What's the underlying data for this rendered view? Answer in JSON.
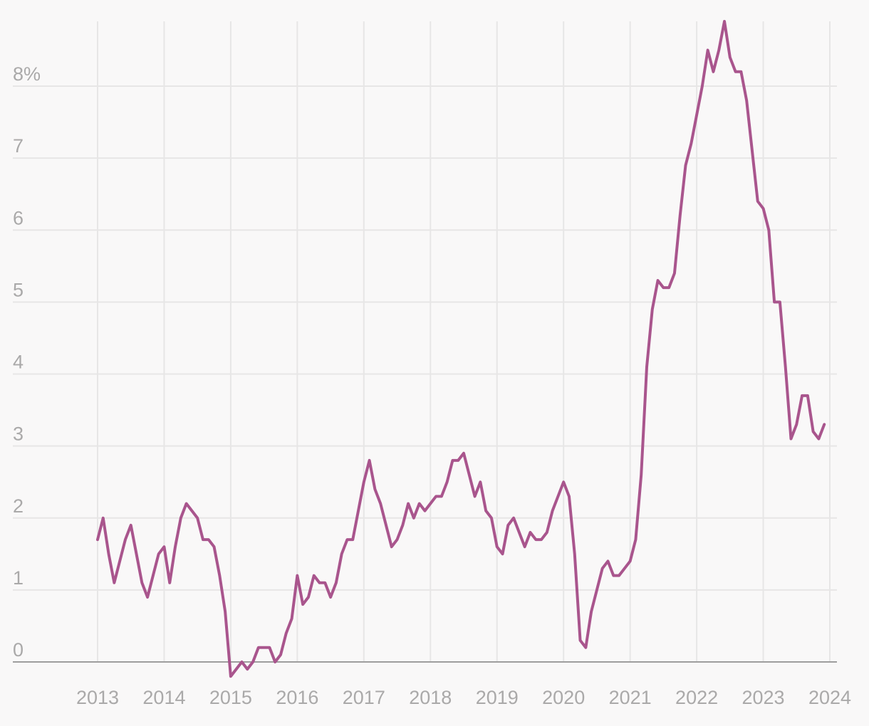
{
  "chart_data": {
    "type": "line",
    "title": "",
    "xlabel": "",
    "ylabel": "",
    "xlim": [
      2012.0,
      2024.1
    ],
    "ylim": [
      -0.2,
      8.9
    ],
    "grid": true,
    "legend": "none",
    "color": "#a9558d",
    "x_ticks": [
      {
        "value": 2013,
        "label": "2013"
      },
      {
        "value": 2014,
        "label": "2014"
      },
      {
        "value": 2015,
        "label": "2015"
      },
      {
        "value": 2016,
        "label": "2016"
      },
      {
        "value": 2017,
        "label": "2017"
      },
      {
        "value": 2018,
        "label": "2018"
      },
      {
        "value": 2019,
        "label": "2019"
      },
      {
        "value": 2020,
        "label": "2020"
      },
      {
        "value": 2021,
        "label": "2021"
      },
      {
        "value": 2022,
        "label": "2022"
      },
      {
        "value": 2023,
        "label": "2023"
      },
      {
        "value": 2024,
        "label": "2024"
      }
    ],
    "y_ticks": [
      {
        "value": 0,
        "label": "0"
      },
      {
        "value": 1,
        "label": "1"
      },
      {
        "value": 2,
        "label": "2"
      },
      {
        "value": 3,
        "label": "3"
      },
      {
        "value": 4,
        "label": "4"
      },
      {
        "value": 5,
        "label": "5"
      },
      {
        "value": 6,
        "label": "6"
      },
      {
        "value": 7,
        "label": "7"
      },
      {
        "value": 8,
        "label": "8%"
      }
    ],
    "series": [
      {
        "points": [
          [
            "2013-01",
            1.7
          ],
          [
            "2013-02",
            2.0
          ],
          [
            "2013-03",
            1.5
          ],
          [
            "2013-04",
            1.1
          ],
          [
            "2013-05",
            1.4
          ],
          [
            "2013-06",
            1.7
          ],
          [
            "2013-07",
            1.9
          ],
          [
            "2013-08",
            1.5
          ],
          [
            "2013-09",
            1.1
          ],
          [
            "2013-10",
            0.9
          ],
          [
            "2013-11",
            1.2
          ],
          [
            "2013-12",
            1.5
          ],
          [
            "2014-01",
            1.6
          ],
          [
            "2014-02",
            1.1
          ],
          [
            "2014-03",
            1.6
          ],
          [
            "2014-04",
            2.0
          ],
          [
            "2014-05",
            2.2
          ],
          [
            "2014-06",
            2.1
          ],
          [
            "2014-07",
            2.0
          ],
          [
            "2014-08",
            1.7
          ],
          [
            "2014-09",
            1.7
          ],
          [
            "2014-10",
            1.6
          ],
          [
            "2014-11",
            1.2
          ],
          [
            "2014-12",
            0.7
          ],
          [
            "2015-01",
            -0.2
          ],
          [
            "2015-02",
            -0.1
          ],
          [
            "2015-03",
            0.0
          ],
          [
            "2015-04",
            -0.1
          ],
          [
            "2015-05",
            0.0
          ],
          [
            "2015-06",
            0.2
          ],
          [
            "2015-07",
            0.2
          ],
          [
            "2015-08",
            0.2
          ],
          [
            "2015-09",
            0.0
          ],
          [
            "2015-10",
            0.1
          ],
          [
            "2015-11",
            0.4
          ],
          [
            "2015-12",
            0.6
          ],
          [
            "2016-01",
            1.2
          ],
          [
            "2016-02",
            0.8
          ],
          [
            "2016-03",
            0.9
          ],
          [
            "2016-04",
            1.2
          ],
          [
            "2016-05",
            1.1
          ],
          [
            "2016-06",
            1.1
          ],
          [
            "2016-07",
            0.9
          ],
          [
            "2016-08",
            1.1
          ],
          [
            "2016-09",
            1.5
          ],
          [
            "2016-10",
            1.7
          ],
          [
            "2016-11",
            1.7
          ],
          [
            "2016-12",
            2.1
          ],
          [
            "2017-01",
            2.5
          ],
          [
            "2017-02",
            2.8
          ],
          [
            "2017-03",
            2.4
          ],
          [
            "2017-04",
            2.2
          ],
          [
            "2017-05",
            1.9
          ],
          [
            "2017-06",
            1.6
          ],
          [
            "2017-07",
            1.7
          ],
          [
            "2017-08",
            1.9
          ],
          [
            "2017-09",
            2.2
          ],
          [
            "2017-10",
            2.0
          ],
          [
            "2017-11",
            2.2
          ],
          [
            "2017-12",
            2.1
          ],
          [
            "2018-01",
            2.2
          ],
          [
            "2018-02",
            2.3
          ],
          [
            "2018-03",
            2.3
          ],
          [
            "2018-04",
            2.5
          ],
          [
            "2018-05",
            2.8
          ],
          [
            "2018-06",
            2.8
          ],
          [
            "2018-07",
            2.9
          ],
          [
            "2018-08",
            2.6
          ],
          [
            "2018-09",
            2.3
          ],
          [
            "2018-10",
            2.5
          ],
          [
            "2018-11",
            2.1
          ],
          [
            "2018-12",
            2.0
          ],
          [
            "2019-01",
            1.6
          ],
          [
            "2019-02",
            1.5
          ],
          [
            "2019-03",
            1.9
          ],
          [
            "2019-04",
            2.0
          ],
          [
            "2019-05",
            1.8
          ],
          [
            "2019-06",
            1.6
          ],
          [
            "2019-07",
            1.8
          ],
          [
            "2019-08",
            1.7
          ],
          [
            "2019-09",
            1.7
          ],
          [
            "2019-10",
            1.8
          ],
          [
            "2019-11",
            2.1
          ],
          [
            "2019-12",
            2.3
          ],
          [
            "2020-01",
            2.5
          ],
          [
            "2020-02",
            2.3
          ],
          [
            "2020-03",
            1.5
          ],
          [
            "2020-04",
            0.3
          ],
          [
            "2020-05",
            0.2
          ],
          [
            "2020-06",
            0.7
          ],
          [
            "2020-07",
            1.0
          ],
          [
            "2020-08",
            1.3
          ],
          [
            "2020-09",
            1.4
          ],
          [
            "2020-10",
            1.2
          ],
          [
            "2020-11",
            1.2
          ],
          [
            "2020-12",
            1.3
          ],
          [
            "2021-01",
            1.4
          ],
          [
            "2021-02",
            1.7
          ],
          [
            "2021-03",
            2.6
          ],
          [
            "2021-04",
            4.1
          ],
          [
            "2021-05",
            4.9
          ],
          [
            "2021-06",
            5.3
          ],
          [
            "2021-07",
            5.2
          ],
          [
            "2021-08",
            5.2
          ],
          [
            "2021-09",
            5.4
          ],
          [
            "2021-10",
            6.2
          ],
          [
            "2021-11",
            6.9
          ],
          [
            "2021-12",
            7.2
          ],
          [
            "2022-01",
            7.6
          ],
          [
            "2022-02",
            8.0
          ],
          [
            "2022-03",
            8.5
          ],
          [
            "2022-04",
            8.2
          ],
          [
            "2022-05",
            8.5
          ],
          [
            "2022-06",
            8.9
          ],
          [
            "2022-07",
            8.4
          ],
          [
            "2022-08",
            8.2
          ],
          [
            "2022-09",
            8.2
          ],
          [
            "2022-10",
            7.8
          ],
          [
            "2022-11",
            7.1
          ],
          [
            "2022-12",
            6.4
          ],
          [
            "2023-01",
            6.3
          ],
          [
            "2023-02",
            6.0
          ],
          [
            "2023-03",
            5.0
          ],
          [
            "2023-04",
            5.0
          ],
          [
            "2023-05",
            4.1
          ],
          [
            "2023-06",
            3.1
          ],
          [
            "2023-07",
            3.3
          ],
          [
            "2023-08",
            3.7
          ],
          [
            "2023-09",
            3.7
          ],
          [
            "2023-10",
            3.2
          ],
          [
            "2023-11",
            3.1
          ],
          [
            "2023-12",
            3.3
          ]
        ]
      }
    ]
  }
}
